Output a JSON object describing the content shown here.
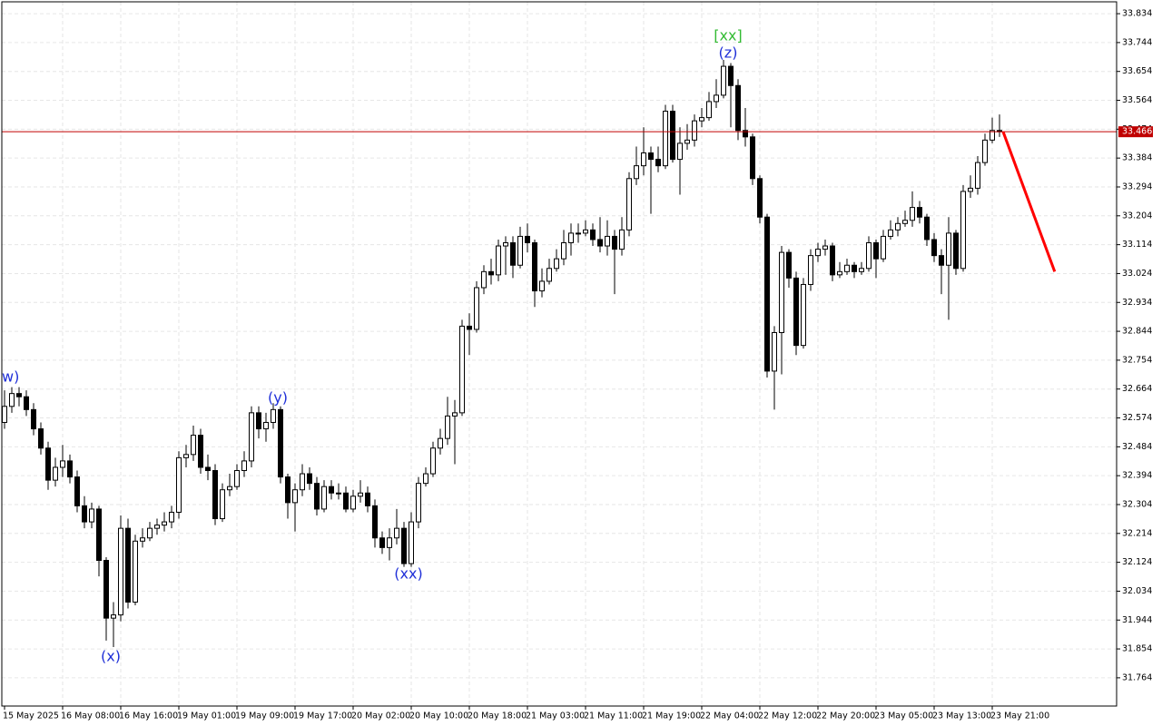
{
  "chart_data": {
    "type": "candlestick",
    "xlim": [
      -0.375,
      153.125
    ],
    "ylim": [
      31.676,
      33.871
    ],
    "grid": true,
    "bull_color": "#ffffff",
    "bear_color": "#000000",
    "yticks": [
      33.834,
      33.744,
      33.654,
      33.564,
      33.474,
      33.384,
      33.294,
      33.204,
      33.114,
      33.024,
      32.934,
      32.844,
      32.754,
      32.664,
      32.574,
      32.484,
      32.394,
      32.304,
      32.214,
      32.124,
      32.034,
      31.944,
      31.854,
      31.764
    ],
    "xticks": [
      {
        "value": 0,
        "label": "15 May 2025"
      },
      {
        "value": 8,
        "label": "16 May 08:00"
      },
      {
        "value": 16,
        "label": "16 May 16:00"
      },
      {
        "value": 24,
        "label": "19 May 01:00"
      },
      {
        "value": 32,
        "label": "19 May 09:00"
      },
      {
        "value": 40,
        "label": "19 May 17:00"
      },
      {
        "value": 48,
        "label": "20 May 02:00"
      },
      {
        "value": 56,
        "label": "20 May 10:00"
      },
      {
        "value": 64,
        "label": "20 May 18:00"
      },
      {
        "value": 72,
        "label": "21 May 03:00"
      },
      {
        "value": 80,
        "label": "21 May 11:00"
      },
      {
        "value": 88,
        "label": "21 May 19:00"
      },
      {
        "value": 96,
        "label": "22 May 04:00"
      },
      {
        "value": 104,
        "label": "22 May 12:00"
      },
      {
        "value": 112,
        "label": "22 May 20:00"
      },
      {
        "value": 120,
        "label": "23 May 05:00"
      },
      {
        "value": 128,
        "label": "23 May 13:00"
      },
      {
        "value": 136,
        "label": "23 May 21:00"
      }
    ],
    "open": [
      32.56,
      32.61,
      32.65,
      32.64,
      32.6,
      32.54,
      32.48,
      32.38,
      32.42,
      32.44,
      32.39,
      32.3,
      32.25,
      32.29,
      32.13,
      31.95,
      31.96,
      32.23,
      32.0,
      32.19,
      32.2,
      32.23,
      32.24,
      32.25,
      32.28,
      32.45,
      32.46,
      32.52,
      32.42,
      32.41,
      32.26,
      32.35,
      32.36,
      32.41,
      32.44,
      32.59,
      32.54,
      32.56,
      32.6,
      32.39,
      32.31,
      32.35,
      32.4,
      32.37,
      32.29,
      32.36,
      32.34,
      32.34,
      32.29,
      32.33,
      32.34,
      32.3,
      32.2,
      32.17,
      32.2,
      32.23,
      32.12,
      32.25,
      32.37,
      32.4,
      32.48,
      32.51,
      32.58,
      32.59,
      32.86,
      32.85,
      32.98,
      33.03,
      33.02,
      33.11,
      33.12,
      33.05,
      33.14,
      33.12,
      32.97,
      33.0,
      33.04,
      33.07,
      33.12,
      33.15,
      33.15,
      33.16,
      33.13,
      33.11,
      33.14,
      33.1,
      33.16,
      33.32,
      33.36,
      33.4,
      33.38,
      33.36,
      33.53,
      33.38,
      33.43,
      33.44,
      33.5,
      33.51,
      33.56,
      33.58,
      33.67,
      33.61,
      33.47,
      33.45,
      33.32,
      33.2,
      32.72,
      32.84,
      33.09,
      33.01,
      32.8,
      32.99,
      33.08,
      33.1,
      33.11,
      33.02,
      33.03,
      33.05,
      33.03,
      33.04,
      33.12,
      33.07,
      33.14,
      33.16,
      33.18,
      33.19,
      33.23,
      33.2,
      33.13,
      33.08,
      33.05,
      33.15,
      33.04,
      33.28,
      33.29,
      33.37,
      33.44,
      33.47
    ],
    "high": [
      32.66,
      32.67,
      32.67,
      32.66,
      32.62,
      32.56,
      32.5,
      32.45,
      32.49,
      32.46,
      32.41,
      32.33,
      32.31,
      32.3,
      32.14,
      32.0,
      32.27,
      32.26,
      32.21,
      32.23,
      32.25,
      32.26,
      32.28,
      32.3,
      32.47,
      32.49,
      32.55,
      32.54,
      32.46,
      32.43,
      32.37,
      32.4,
      32.43,
      32.47,
      32.61,
      32.61,
      32.59,
      32.62,
      32.61,
      32.4,
      32.37,
      32.43,
      32.42,
      32.39,
      32.38,
      32.38,
      32.37,
      32.36,
      32.35,
      32.38,
      32.36,
      32.32,
      32.22,
      32.23,
      32.29,
      32.25,
      32.28,
      32.39,
      32.42,
      32.5,
      32.54,
      32.64,
      32.63,
      32.88,
      32.9,
      33.0,
      33.05,
      33.07,
      33.13,
      33.14,
      33.14,
      33.17,
      33.18,
      33.13,
      33.04,
      33.07,
      33.1,
      33.16,
      33.18,
      33.18,
      33.19,
      33.18,
      33.2,
      33.19,
      33.16,
      33.2,
      33.34,
      33.42,
      33.48,
      33.42,
      33.42,
      33.55,
      33.55,
      33.48,
      33.49,
      33.52,
      33.54,
      33.59,
      33.63,
      33.69,
      33.68,
      33.63,
      33.54,
      33.46,
      33.33,
      33.21,
      32.86,
      33.11,
      33.1,
      33.03,
      33.01,
      33.1,
      33.12,
      33.13,
      33.12,
      33.06,
      33.07,
      33.06,
      33.06,
      33.14,
      33.13,
      33.16,
      33.19,
      33.2,
      33.22,
      33.28,
      33.25,
      33.21,
      33.15,
      33.1,
      33.2,
      33.16,
      33.3,
      33.33,
      33.39,
      33.46,
      33.51,
      33.52
    ],
    "low": [
      32.54,
      32.59,
      32.61,
      32.58,
      32.52,
      32.46,
      32.35,
      32.36,
      32.39,
      32.37,
      32.28,
      32.23,
      32.23,
      32.08,
      31.88,
      31.86,
      31.94,
      31.98,
      31.99,
      32.17,
      32.19,
      32.21,
      32.22,
      32.23,
      32.26,
      32.42,
      32.44,
      32.4,
      32.38,
      32.24,
      32.25,
      32.33,
      32.35,
      32.39,
      32.42,
      32.51,
      32.5,
      32.54,
      32.37,
      32.26,
      32.22,
      32.33,
      32.35,
      32.27,
      32.28,
      32.32,
      32.32,
      32.28,
      32.28,
      32.31,
      32.28,
      32.17,
      32.15,
      32.13,
      32.18,
      32.11,
      32.11,
      32.23,
      32.36,
      32.39,
      32.46,
      32.49,
      32.43,
      32.58,
      32.77,
      32.84,
      32.96,
      32.99,
      33.0,
      33.02,
      33.01,
      33.04,
      33.09,
      32.92,
      32.95,
      32.99,
      33.03,
      33.05,
      33.08,
      33.12,
      33.14,
      33.11,
      33.09,
      33.08,
      32.96,
      33.08,
      33.14,
      33.3,
      33.33,
      33.21,
      33.34,
      33.35,
      33.37,
      33.27,
      33.41,
      33.42,
      33.48,
      33.5,
      33.54,
      33.57,
      33.48,
      33.44,
      33.42,
      33.3,
      33.18,
      32.7,
      32.6,
      32.71,
      32.98,
      32.77,
      32.79,
      32.97,
      33.06,
      33.08,
      33.0,
      33.01,
      33.02,
      33.01,
      33.02,
      33.03,
      33.01,
      33.06,
      33.13,
      33.14,
      33.17,
      33.17,
      33.18,
      33.11,
      33.06,
      32.96,
      32.88,
      33.02,
      33.03,
      33.26,
      33.27,
      33.36,
      33.43,
      33.45
    ],
    "close": [
      32.61,
      32.65,
      32.64,
      32.6,
      32.54,
      32.48,
      32.38,
      32.42,
      32.44,
      32.39,
      32.3,
      32.25,
      32.29,
      32.13,
      31.95,
      31.96,
      32.23,
      32.0,
      32.19,
      32.2,
      32.23,
      32.24,
      32.25,
      32.28,
      32.45,
      32.46,
      32.52,
      32.42,
      32.41,
      32.26,
      32.35,
      32.36,
      32.41,
      32.44,
      32.59,
      32.54,
      32.56,
      32.6,
      32.39,
      32.31,
      32.35,
      32.4,
      32.37,
      32.29,
      32.36,
      32.34,
      32.34,
      32.29,
      32.33,
      32.34,
      32.3,
      32.2,
      32.17,
      32.2,
      32.23,
      32.12,
      32.25,
      32.37,
      32.4,
      32.48,
      32.51,
      32.58,
      32.59,
      32.86,
      32.85,
      32.98,
      33.03,
      33.02,
      33.11,
      33.12,
      33.05,
      33.14,
      33.12,
      32.97,
      33.0,
      33.04,
      33.07,
      33.12,
      33.15,
      33.15,
      33.16,
      33.13,
      33.11,
      33.14,
      33.1,
      33.16,
      33.32,
      33.36,
      33.4,
      33.38,
      33.36,
      33.53,
      33.38,
      33.43,
      33.44,
      33.5,
      33.51,
      33.56,
      33.58,
      33.67,
      33.61,
      33.47,
      33.45,
      33.32,
      33.2,
      32.72,
      32.84,
      33.09,
      33.01,
      32.8,
      32.99,
      33.08,
      33.1,
      33.11,
      33.02,
      33.03,
      33.05,
      33.03,
      33.04,
      33.12,
      33.07,
      33.14,
      33.16,
      33.18,
      33.19,
      33.23,
      33.2,
      33.13,
      33.08,
      33.05,
      33.15,
      33.04,
      33.28,
      33.29,
      33.37,
      33.44,
      33.47,
      33.466
    ],
    "price_line": {
      "value": 33.466,
      "color": "#c00000"
    },
    "forecast": {
      "x": [
        137.5,
        144.6
      ],
      "values": [
        33.466,
        33.03
      ],
      "color": "#ff0000"
    },
    "annotations": [
      {
        "text": "w)",
        "color": "#1f2fd8"
      },
      {
        "text": "(x)",
        "color": "#1f2fd8"
      },
      {
        "text": "(y)",
        "color": "#1f2fd8"
      },
      {
        "text": "(xx)",
        "color": "#1f2fd8"
      },
      {
        "text": "(z)",
        "color": "#1f2fd8"
      },
      {
        "text": "[xx]",
        "color": "#33bb33"
      }
    ]
  }
}
